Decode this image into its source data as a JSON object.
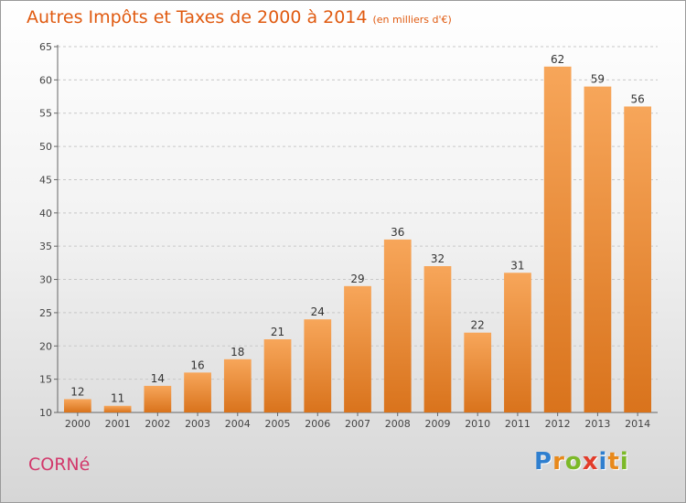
{
  "header": {
    "title": "Autres Impôts et Taxes de 2000 à 2014",
    "subtitle": "(en milliers d'€)"
  },
  "place_name": "CORNé",
  "logo": {
    "letters": [
      {
        "ch": "P",
        "color": "#2f7fcf"
      },
      {
        "ch": "r",
        "color": "#e8891b"
      },
      {
        "ch": "o",
        "color": "#7cb928"
      },
      {
        "ch": "x",
        "color": "#e23c2a"
      },
      {
        "ch": "i",
        "color": "#2f7fcf"
      },
      {
        "ch": "t",
        "color": "#e8891b"
      },
      {
        "ch": "i",
        "color": "#7cb928"
      }
    ]
  },
  "colors": {
    "title": "#e05a10",
    "place": "#d2386b",
    "bar_light": "#f7a65a",
    "bar_dark": "#d9731c"
  },
  "chart_data": {
    "type": "bar",
    "title": "Autres Impôts et Taxes de 2000 à 2014",
    "subtitle": "(en milliers d'€)",
    "xlabel": "",
    "ylabel": "",
    "categories": [
      "2000",
      "2001",
      "2002",
      "2003",
      "2004",
      "2005",
      "2006",
      "2007",
      "2008",
      "2009",
      "2010",
      "2011",
      "2012",
      "2013",
      "2014"
    ],
    "values": [
      12,
      11,
      14,
      16,
      18,
      21,
      24,
      29,
      36,
      32,
      22,
      31,
      62,
      59,
      56
    ],
    "ylim": [
      10,
      65
    ],
    "yticks": [
      10,
      15,
      20,
      25,
      30,
      35,
      40,
      45,
      50,
      55,
      60,
      65
    ],
    "grid": true,
    "legend": "none"
  }
}
